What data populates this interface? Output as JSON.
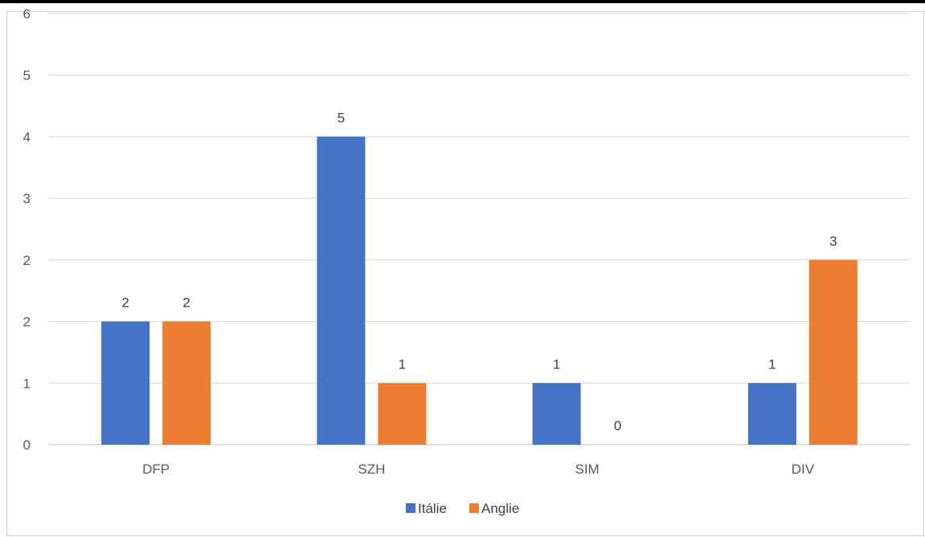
{
  "chart_data": {
    "type": "bar",
    "categories": [
      "DFP",
      "SZH",
      "SIM",
      "DIV"
    ],
    "series": [
      {
        "name": "Itálie",
        "values": [
          2,
          5,
          1,
          1
        ],
        "color": "#4472c4"
      },
      {
        "name": "Anglie",
        "values": [
          2,
          1,
          0,
          3
        ],
        "color": "#ed7d31"
      }
    ],
    "data_labels": [
      [
        "2",
        "5",
        "1",
        "1"
      ],
      [
        "2",
        "1",
        "0",
        "3"
      ]
    ],
    "y_tick_labels": [
      "0",
      "1",
      "2",
      "2",
      "3",
      "4",
      "5",
      "6"
    ],
    "ylim": [
      0,
      6
    ],
    "grid": true,
    "legend_position": "bottom"
  }
}
